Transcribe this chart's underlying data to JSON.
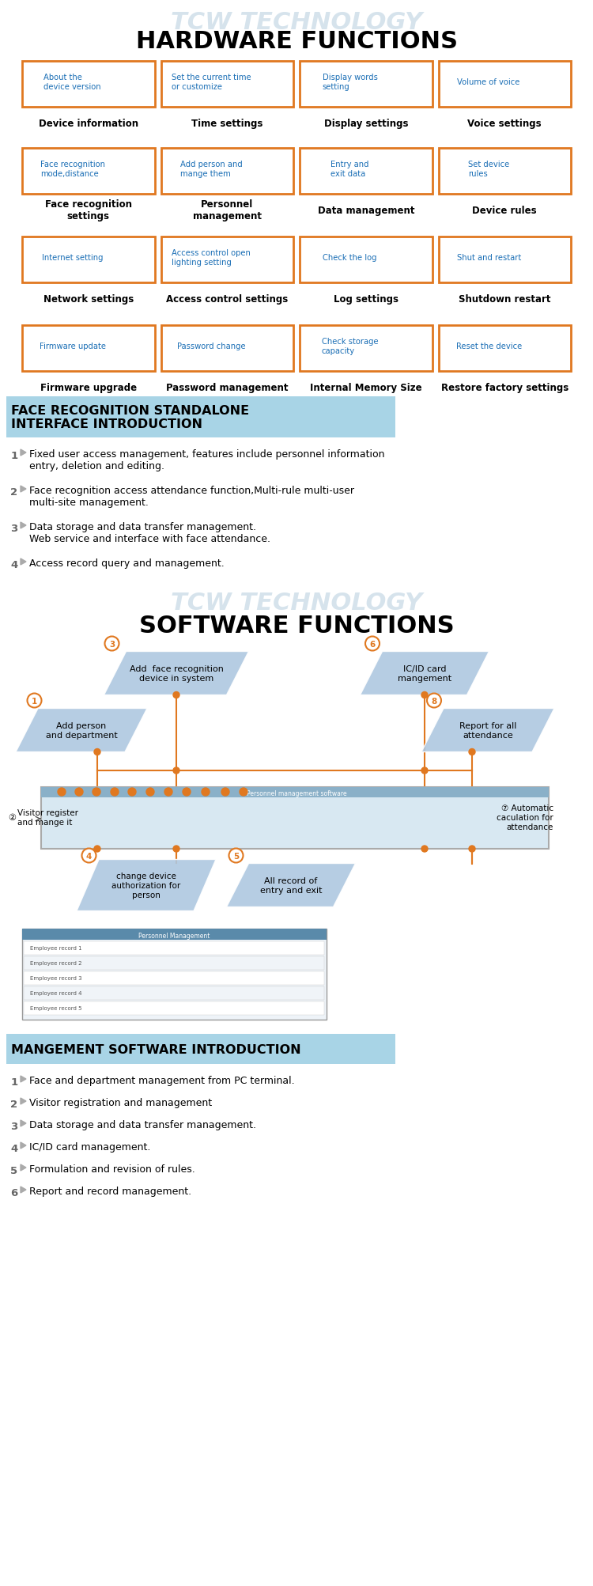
{
  "title1": "HARDWARE FUNCTIONS",
  "watermark": "TCW TECHNOLOGY",
  "section1_bg": "#a8d4e6",
  "section1_title": "FACE RECOGNITION STANDALONE\nINTERFACE INTRODUCTION",
  "section1_items": [
    "Fixed user access management, features include personnel information\nentry, deletion and editing.",
    "Face recognition access attendance function,Multi-rule multi-user\nmulti-site management.",
    "Data storage and data transfer management.\nWeb service and interface with face attendance.",
    "Access record query and management."
  ],
  "title2": "SOFTWARE FUNCTIONS",
  "section2_bg": "#a8d4e6",
  "section2_title": "MANGEMENT SOFTWARE INTRODUCTION",
  "section2_items": [
    "Face and department management from PC terminal.",
    "Visitor registration and management",
    "Data storage and data transfer management.",
    "IC/ID card management.",
    "Formulation and revision of rules.",
    "Report and record management."
  ],
  "hw_row1": [
    "About the\ndevice version",
    "Set the current time\nor customize",
    "Display words\nsetting",
    "Volume of voice"
  ],
  "hw_row1_labels": [
    "Device information",
    "Time settings",
    "Display settings",
    "Voice settings"
  ],
  "hw_row2": [
    "Face recognition\nmode,distance",
    "Add person and\nmange them",
    "Entry and\nexit data",
    "Set device\nrules"
  ],
  "hw_row2_labels": [
    "Face recognition\nsettings",
    "Personnel\nmanagement",
    "Data management",
    "Device rules"
  ],
  "hw_row3": [
    "Internet setting",
    "Access control open\nlighting setting",
    "Check the log",
    "Shut and restart"
  ],
  "hw_row3_labels": [
    "Network settings",
    "Access control settings",
    "Log settings",
    "Shutdown restart"
  ],
  "hw_row4": [
    "Firmware update",
    "Password change",
    "Check storage\ncapacity",
    "Reset the device"
  ],
  "hw_row4_labels": [
    "Firmware upgrade",
    "Password management",
    "Internal Memory Size",
    "Restore factory settings"
  ],
  "orange_border": "#e07820",
  "blue_text": "#1a6eb5",
  "black_text": "#000000",
  "box_fill": "#ffffff",
  "bg_color": "#ffffff",
  "para_color": "#aec8e0",
  "circle_color": "#e07820"
}
